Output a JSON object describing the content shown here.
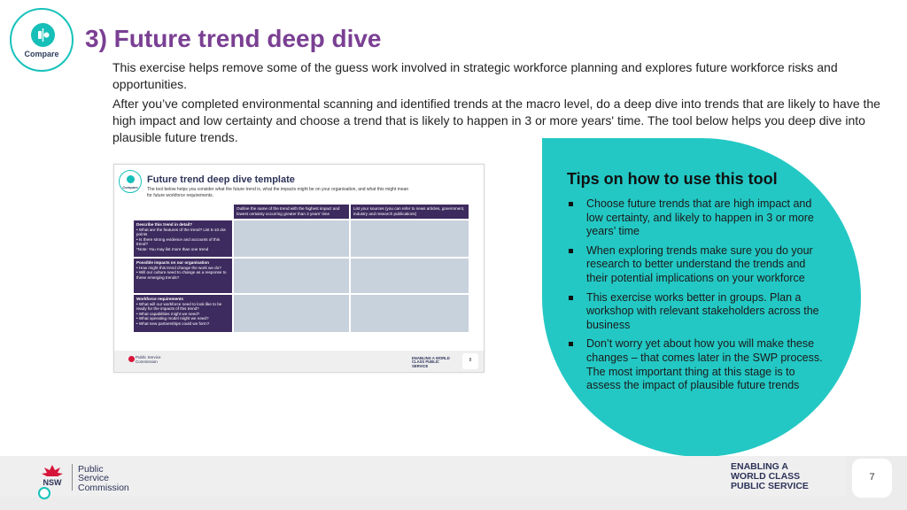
{
  "badge": {
    "label": "Compare",
    "icon": "compare-icon"
  },
  "header": {
    "title": "3) Future trend deep dive",
    "intro_1": "This exercise helps remove some of the guess work involved in strategic workforce planning and explores future workforce risks and opportunities.",
    "intro_2": "After you’ve completed environmental scanning and identified trends at the macro level, do a deep dive into trends that are likely to have the high impact and low certainty and choose a trend that is likely to happen in 3 or more years' time. The tool below helps you deep dive into plausible future trends."
  },
  "template": {
    "badge_label": "Compare",
    "title": "Future trend deep dive template",
    "description": "The tool below helps you consider what the future trend is, what the impacts might be on your organisation, and what this might mean for future workforce requirements.",
    "col_headers": [
      "Outline the name of the trend with the highest impact and lowest certainty occurring greater than 3 years' time",
      "List your sources (you can refer to news articles, government, industry and research publications)"
    ],
    "rows": [
      {
        "title": "Describe this trend in detail?",
        "lines": [
          "• What are the features of the trend? List 5-10 dot points",
          "• Is there strong evidence and accounts of this trend?",
          "*Note: You may list more than one trend"
        ]
      },
      {
        "title": "Possible impacts on our organisation",
        "lines": [
          "• How might this trend change the work we do?",
          "• Will our culture need to change as a response to these emerging trends?"
        ]
      },
      {
        "title": "Workforce requirements",
        "lines": [
          "• What will our workforce need to look like to be ready for the impacts of this trend?",
          "• What capabilities might we need?",
          "• What operating model might we need?",
          "• What new partnerships could we form?"
        ]
      }
    ],
    "footer_org": "Public Service Commission",
    "footer_tagline": "ENABLING A WORLD CLASS PUBLIC SERVICE",
    "page": "8"
  },
  "tips": {
    "title": "Tips on how to use this tool",
    "items": [
      "Choose future trends that are high impact and low certainty, and likely to happen in 3 or more years’ time",
      "When exploring trends make sure you do your research to better understand the trends and their potential implications on your workforce",
      "This exercise works better in groups. Plan a workshop with relevant stakeholders across the business",
      "Don’t worry yet about how you will make these changes – that comes later in the SWP process. The most important thing at this stage is to assess the impact of plausible future trends"
    ]
  },
  "footer": {
    "nsw": "NSW",
    "org_line1": "Public",
    "org_line2": "Service",
    "org_line3": "Commission",
    "tagline_1": "ENABLING A",
    "tagline_2": "WORLD CLASS",
    "tagline_3": "PUBLIC SERVICE",
    "page": "7"
  },
  "colors": {
    "title": "#7a3f93",
    "teal": "#23c8c4",
    "navy": "#2d3359",
    "grid_header": "#3d2a5e",
    "grid_fill": "#c8d2dc",
    "waratah_red": "#d7153a"
  }
}
